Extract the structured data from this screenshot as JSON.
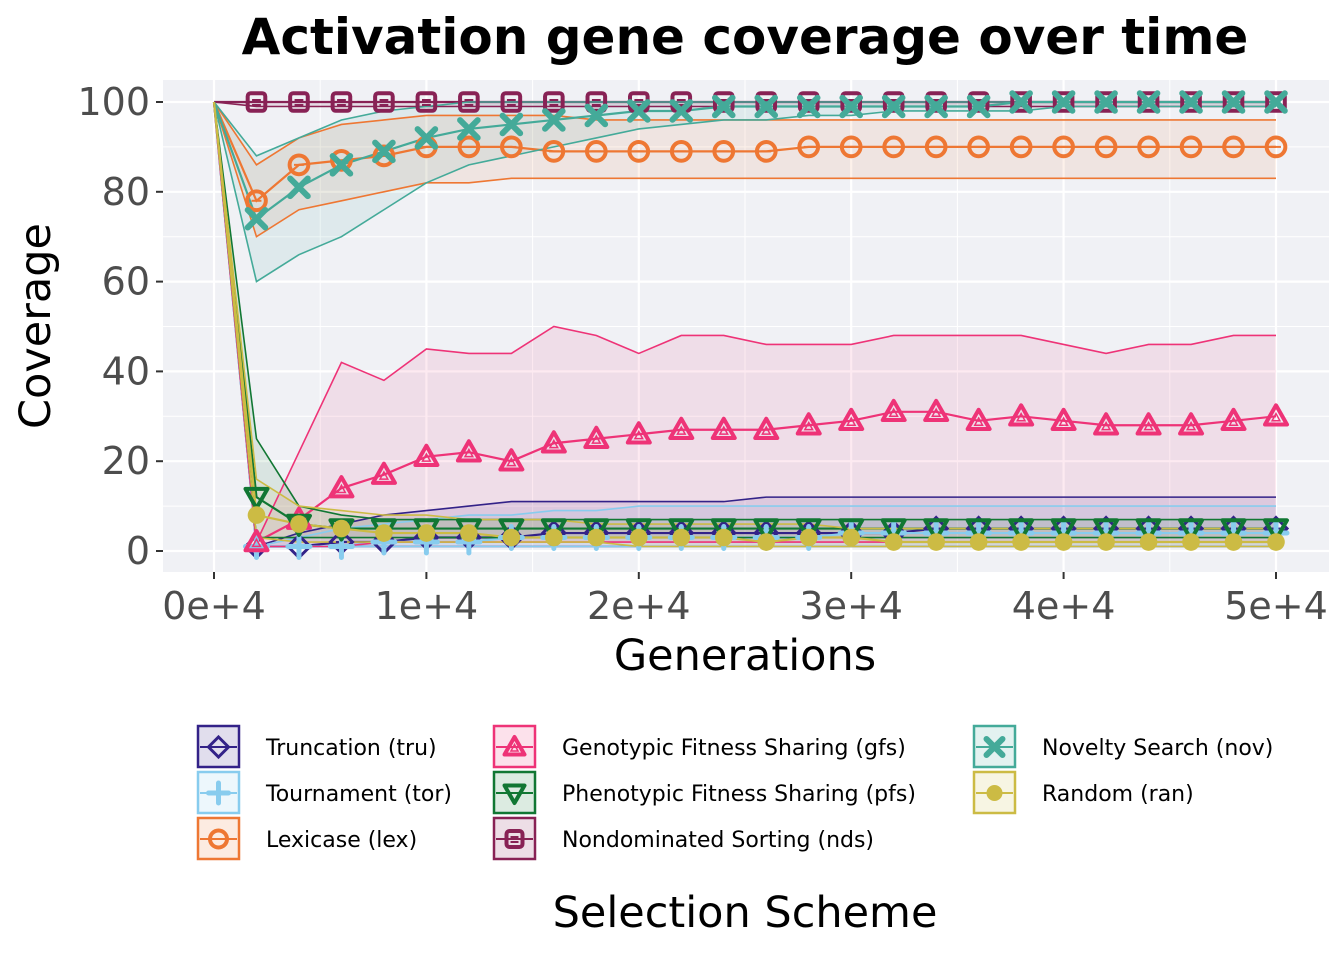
{
  "chart_data": {
    "type": "line",
    "title": "Activation gene coverage over time",
    "xlabel": "Generations",
    "ylabel": "Coverage",
    "xlim": [
      -2500,
      52500
    ],
    "ylim": [
      -5,
      105
    ],
    "x_ticks": [
      0,
      10000,
      20000,
      30000,
      40000,
      50000
    ],
    "x_tick_labels": [
      "0e+4",
      "1e+4",
      "2e+4",
      "3e+4",
      "4e+4",
      "5e+4"
    ],
    "y_ticks": [
      0,
      20,
      40,
      60,
      80,
      100
    ],
    "y_tick_labels": [
      "0",
      "20",
      "40",
      "60",
      "80",
      "100"
    ],
    "grid": true,
    "legend_title": "Selection Scheme",
    "legend_position": "bottom",
    "marker_x": [
      2000,
      4000,
      6000,
      8000,
      10000,
      12000,
      14000,
      16000,
      18000,
      20000,
      22000,
      24000,
      26000,
      28000,
      30000,
      32000,
      34000,
      36000,
      38000,
      40000,
      42000,
      44000,
      46000,
      48000,
      50000
    ],
    "series": [
      {
        "name": "Truncation (tru)",
        "color": "#332288",
        "marker": "diamond",
        "values": [
          1,
          1,
          2,
          2,
          3,
          3,
          3,
          4,
          4,
          4,
          4,
          4,
          4,
          4,
          4,
          4,
          5,
          5,
          5,
          5,
          5,
          5,
          5,
          5,
          5
        ],
        "band": [
          [
            1,
            1
          ],
          [
            1,
            4
          ],
          [
            1,
            6
          ],
          [
            1,
            8
          ],
          [
            1,
            9
          ],
          [
            1,
            10
          ],
          [
            1,
            11
          ],
          [
            1,
            11
          ],
          [
            1,
            11
          ],
          [
            1,
            11
          ],
          [
            1,
            11
          ],
          [
            1,
            11
          ],
          [
            1,
            12
          ],
          [
            1,
            12
          ],
          [
            1,
            12
          ],
          [
            1,
            12
          ],
          [
            1,
            12
          ],
          [
            1,
            12
          ],
          [
            1,
            12
          ],
          [
            1,
            12
          ],
          [
            1,
            12
          ],
          [
            1,
            12
          ],
          [
            1,
            12
          ],
          [
            1,
            12
          ],
          [
            1,
            12
          ]
        ]
      },
      {
        "name": "Tournament (tor)",
        "color": "#88CCEE",
        "marker": "plus",
        "values": [
          1,
          1,
          1,
          2,
          2,
          2,
          3,
          3,
          3,
          3,
          3,
          3,
          3,
          3,
          4,
          4,
          4,
          4,
          4,
          4,
          4,
          4,
          4,
          4,
          4
        ],
        "band": [
          [
            1,
            1
          ],
          [
            1,
            3
          ],
          [
            1,
            5
          ],
          [
            1,
            6
          ],
          [
            1,
            7
          ],
          [
            1,
            8
          ],
          [
            1,
            8
          ],
          [
            1,
            9
          ],
          [
            1,
            9
          ],
          [
            1,
            10
          ],
          [
            1,
            10
          ],
          [
            1,
            10
          ],
          [
            1,
            10
          ],
          [
            1,
            10
          ],
          [
            1,
            10
          ],
          [
            1,
            10
          ],
          [
            1,
            10
          ],
          [
            1,
            10
          ],
          [
            1,
            10
          ],
          [
            1,
            10
          ],
          [
            1,
            10
          ],
          [
            1,
            10
          ],
          [
            1,
            10
          ],
          [
            1,
            10
          ],
          [
            1,
            10
          ]
        ]
      },
      {
        "name": "Lexicase (lex)",
        "color": "#EE7733",
        "marker": "circle-open",
        "values": [
          78,
          86,
          87,
          88,
          90,
          90,
          90,
          89,
          89,
          89,
          89,
          89,
          89,
          90,
          90,
          90,
          90,
          90,
          90,
          90,
          90,
          90,
          90,
          90,
          90
        ],
        "band": [
          [
            70,
            86
          ],
          [
            76,
            92
          ],
          [
            78,
            95
          ],
          [
            80,
            96
          ],
          [
            82,
            97
          ],
          [
            82,
            97
          ],
          [
            83,
            97
          ],
          [
            83,
            97
          ],
          [
            83,
            96
          ],
          [
            83,
            96
          ],
          [
            83,
            96
          ],
          [
            83,
            96
          ],
          [
            83,
            96
          ],
          [
            83,
            96
          ],
          [
            83,
            96
          ],
          [
            83,
            96
          ],
          [
            83,
            96
          ],
          [
            83,
            96
          ],
          [
            83,
            96
          ],
          [
            83,
            96
          ],
          [
            83,
            96
          ],
          [
            83,
            96
          ],
          [
            83,
            96
          ],
          [
            83,
            96
          ],
          [
            83,
            96
          ]
        ]
      },
      {
        "name": "Genotypic Fitness Sharing (gfs)",
        "color": "#EE3377",
        "marker": "triangle-up",
        "values": [
          2,
          7,
          14,
          17,
          21,
          22,
          20,
          24,
          25,
          26,
          27,
          27,
          27,
          28,
          29,
          31,
          31,
          29,
          30,
          29,
          28,
          28,
          28,
          29,
          30
        ],
        "band": [
          [
            1,
            2
          ],
          [
            1,
            22
          ],
          [
            1,
            42
          ],
          [
            2,
            38
          ],
          [
            2,
            45
          ],
          [
            2,
            44
          ],
          [
            2,
            44
          ],
          [
            2,
            50
          ],
          [
            2,
            48
          ],
          [
            2,
            44
          ],
          [
            2,
            48
          ],
          [
            2,
            48
          ],
          [
            2,
            46
          ],
          [
            2,
            46
          ],
          [
            2,
            46
          ],
          [
            2,
            48
          ],
          [
            2,
            48
          ],
          [
            2,
            48
          ],
          [
            2,
            48
          ],
          [
            2,
            46
          ],
          [
            2,
            44
          ],
          [
            2,
            46
          ],
          [
            2,
            46
          ],
          [
            2,
            48
          ],
          [
            2,
            48
          ]
        ]
      },
      {
        "name": "Phenotypic Fitness Sharing (pfs)",
        "color": "#117733",
        "marker": "triangle-down",
        "values": [
          12,
          6,
          5,
          5,
          5,
          5,
          5,
          5,
          5,
          5,
          5,
          5,
          5,
          5,
          5,
          5,
          5,
          5,
          5,
          5,
          5,
          5,
          5,
          5,
          5
        ],
        "band": [
          [
            3,
            25
          ],
          [
            3,
            10
          ],
          [
            3,
            8
          ],
          [
            3,
            7
          ],
          [
            3,
            7
          ],
          [
            3,
            7
          ],
          [
            3,
            7
          ],
          [
            3,
            7
          ],
          [
            3,
            7
          ],
          [
            3,
            7
          ],
          [
            3,
            7
          ],
          [
            3,
            7
          ],
          [
            3,
            7
          ],
          [
            3,
            7
          ],
          [
            3,
            7
          ],
          [
            3,
            7
          ],
          [
            3,
            7
          ],
          [
            3,
            7
          ],
          [
            3,
            7
          ],
          [
            3,
            7
          ],
          [
            3,
            7
          ],
          [
            3,
            7
          ],
          [
            3,
            7
          ],
          [
            3,
            7
          ],
          [
            3,
            7
          ]
        ]
      },
      {
        "name": "Nondominated Sorting (nds)",
        "color": "#882255",
        "marker": "square",
        "values": [
          100,
          100,
          100,
          100,
          100,
          100,
          100,
          100,
          100,
          100,
          100,
          100,
          100,
          100,
          100,
          100,
          100,
          100,
          100,
          100,
          100,
          100,
          100,
          100,
          100
        ],
        "band": [
          [
            99,
            100
          ],
          [
            99,
            100
          ],
          [
            99,
            100
          ],
          [
            99,
            100
          ],
          [
            99,
            100
          ],
          [
            99,
            100
          ],
          [
            99,
            100
          ],
          [
            99,
            100
          ],
          [
            99,
            100
          ],
          [
            99,
            100
          ],
          [
            99,
            100
          ],
          [
            99,
            100
          ],
          [
            99,
            100
          ],
          [
            99,
            100
          ],
          [
            99,
            100
          ],
          [
            99,
            100
          ],
          [
            99,
            100
          ],
          [
            99,
            100
          ],
          [
            99,
            100
          ],
          [
            99,
            100
          ],
          [
            99,
            100
          ],
          [
            99,
            100
          ],
          [
            99,
            100
          ],
          [
            99,
            100
          ],
          [
            99,
            100
          ]
        ]
      },
      {
        "name": "Novelty Search (nov)",
        "color": "#44AA99",
        "marker": "x",
        "values": [
          74,
          81,
          86,
          89,
          92,
          94,
          95,
          96,
          97,
          98,
          98,
          99,
          99,
          99,
          99,
          99,
          99,
          99,
          100,
          100,
          100,
          100,
          100,
          100,
          100
        ],
        "band": [
          [
            60,
            88
          ],
          [
            66,
            92
          ],
          [
            70,
            96
          ],
          [
            76,
            98
          ],
          [
            82,
            99
          ],
          [
            86,
            100
          ],
          [
            88,
            100
          ],
          [
            90,
            100
          ],
          [
            92,
            100
          ],
          [
            94,
            100
          ],
          [
            95,
            100
          ],
          [
            96,
            100
          ],
          [
            96,
            100
          ],
          [
            97,
            100
          ],
          [
            97,
            100
          ],
          [
            98,
            100
          ],
          [
            98,
            100
          ],
          [
            98,
            100
          ],
          [
            98,
            100
          ],
          [
            99,
            100
          ],
          [
            99,
            100
          ],
          [
            99,
            100
          ],
          [
            99,
            100
          ],
          [
            99,
            100
          ],
          [
            99,
            100
          ]
        ]
      },
      {
        "name": "Random (ran)",
        "color": "#CCBB44",
        "marker": "circle",
        "values": [
          8,
          6,
          5,
          4,
          4,
          4,
          3,
          3,
          3,
          3,
          3,
          3,
          2,
          3,
          3,
          2,
          2,
          2,
          2,
          2,
          2,
          2,
          2,
          2,
          2
        ],
        "band": [
          [
            3,
            16
          ],
          [
            2,
            10
          ],
          [
            2,
            9
          ],
          [
            2,
            8
          ],
          [
            2,
            8
          ],
          [
            2,
            7
          ],
          [
            2,
            7
          ],
          [
            2,
            7
          ],
          [
            2,
            6
          ],
          [
            1,
            6
          ],
          [
            1,
            6
          ],
          [
            1,
            6
          ],
          [
            1,
            6
          ],
          [
            1,
            6
          ],
          [
            1,
            5
          ],
          [
            1,
            5
          ],
          [
            1,
            5
          ],
          [
            1,
            5
          ],
          [
            1,
            5
          ],
          [
            1,
            5
          ],
          [
            1,
            5
          ],
          [
            1,
            5
          ],
          [
            1,
            5
          ],
          [
            1,
            5
          ],
          [
            1,
            5
          ]
        ]
      }
    ]
  }
}
